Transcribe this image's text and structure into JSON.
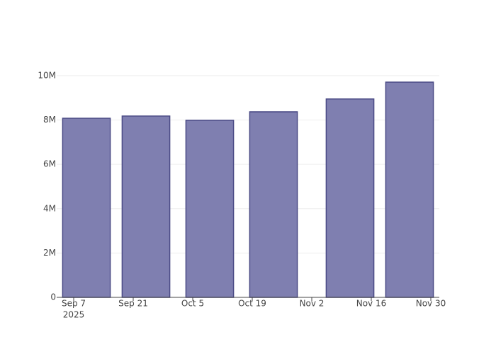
{
  "chart_data": {
    "type": "bar",
    "x": [
      "2025-09-10",
      "2025-09-24",
      "2025-10-09",
      "2025-10-24",
      "2025-11-11",
      "2025-11-25"
    ],
    "values": [
      8080000,
      8180000,
      7990000,
      8370000,
      8950000,
      9710000
    ],
    "color": "#7f7fb0",
    "edge_color": "#4a4a85",
    "xlim": [
      "2025-09-03",
      "2025-12-02"
    ],
    "xticks": [
      {
        "value": "2025-09-07",
        "label": "Sep 7"
      },
      {
        "value": "2025-09-21",
        "label": "Sep 21"
      },
      {
        "value": "2025-10-05",
        "label": "Oct 5"
      },
      {
        "value": "2025-10-19",
        "label": "Oct 19"
      },
      {
        "value": "2025-11-02",
        "label": "Nov 2"
      },
      {
        "value": "2025-11-16",
        "label": "Nov 16"
      },
      {
        "value": "2025-11-30",
        "label": "Nov 30"
      }
    ],
    "xtick_year": "2025",
    "bar_width_days": 11.2,
    "ylim": [
      0,
      10860000
    ],
    "yticks": [
      0,
      {
        "value": 2000000,
        "label": "2M"
      },
      {
        "value": 4000000,
        "label": "4M"
      },
      {
        "value": 6000000,
        "label": "6M"
      },
      {
        "value": 8000000,
        "label": "8M"
      },
      {
        "value": 10000000,
        "label": "10M"
      }
    ],
    "grid": true
  }
}
